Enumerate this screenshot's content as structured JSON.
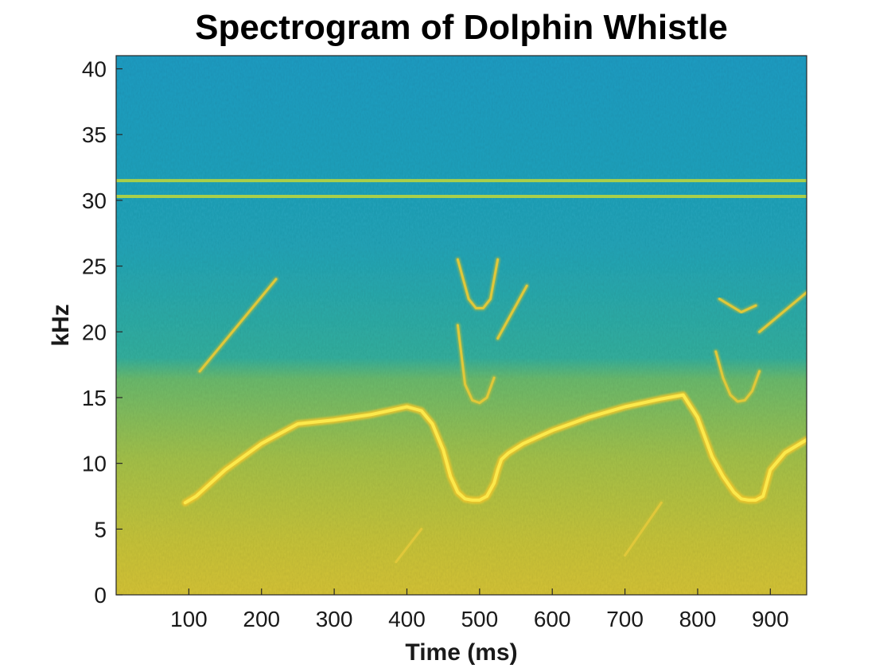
{
  "chart_data": {
    "type": "heatmap",
    "title": "Spectrogram of Dolphin Whistle",
    "xlabel": "Time (ms)",
    "ylabel": "kHz",
    "xlim": [
      0,
      950
    ],
    "ylim": [
      0,
      41
    ],
    "xticks": [
      100,
      200,
      300,
      400,
      500,
      600,
      700,
      800,
      900
    ],
    "yticks": [
      0,
      5,
      10,
      15,
      20,
      25,
      30,
      35,
      40
    ],
    "colormap": [
      "#1a9bc4",
      "#22a8b6",
      "#36b59a",
      "#5cbf78",
      "#93c44e",
      "#c4c53a",
      "#e5c42e",
      "#f6d432",
      "#fbe94c"
    ],
    "tonal_lines_khz": [
      31.5,
      30.3
    ],
    "series": [
      {
        "x": [
          95,
          110,
          150,
          200,
          250,
          300,
          350,
          400,
          420,
          435,
          450,
          460,
          470,
          480,
          490,
          500,
          510,
          520,
          525,
          530,
          540,
          560,
          600,
          650,
          700,
          750,
          780,
          800,
          820,
          835,
          850,
          860,
          870,
          880,
          890,
          900,
          920,
          950
        ],
        "y": [
          7.0,
          7.5,
          9.5,
          11.5,
          13.0,
          13.3,
          13.7,
          14.3,
          14.0,
          13.0,
          11.0,
          9.0,
          7.8,
          7.3,
          7.2,
          7.2,
          7.5,
          8.5,
          9.5,
          10.3,
          10.8,
          11.5,
          12.5,
          13.5,
          14.3,
          14.9,
          15.2,
          13.5,
          10.5,
          9.0,
          7.8,
          7.3,
          7.2,
          7.2,
          7.5,
          9.5,
          10.8,
          11.8
        ]
      },
      {
        "x": [
          115,
          220
        ],
        "y": [
          17.0,
          24.0
        ]
      },
      {
        "x": [
          385,
          420
        ],
        "y": [
          2.5,
          5.0
        ]
      },
      {
        "x": [
          700,
          750
        ],
        "y": [
          3.0,
          7.0
        ]
      },
      {
        "x": [
          470,
          480,
          490,
          500,
          510,
          520
        ],
        "y": [
          20.5,
          16.0,
          14.8,
          14.6,
          15.0,
          16.5
        ]
      },
      {
        "x": [
          470,
          485,
          495,
          505,
          515,
          525
        ],
        "y": [
          25.5,
          22.5,
          21.8,
          21.8,
          22.5,
          25.5
        ]
      },
      {
        "x": [
          525,
          565
        ],
        "y": [
          19.5,
          23.5
        ]
      },
      {
        "x": [
          825,
          835,
          845,
          855,
          865,
          875,
          885
        ],
        "y": [
          18.5,
          16.5,
          15.2,
          14.7,
          14.8,
          15.5,
          17.0
        ]
      },
      {
        "x": [
          885,
          950
        ],
        "y": [
          20.0,
          23.0
        ]
      },
      {
        "x": [
          830,
          860,
          880
        ],
        "y": [
          22.5,
          21.5,
          22.0
        ]
      }
    ]
  }
}
